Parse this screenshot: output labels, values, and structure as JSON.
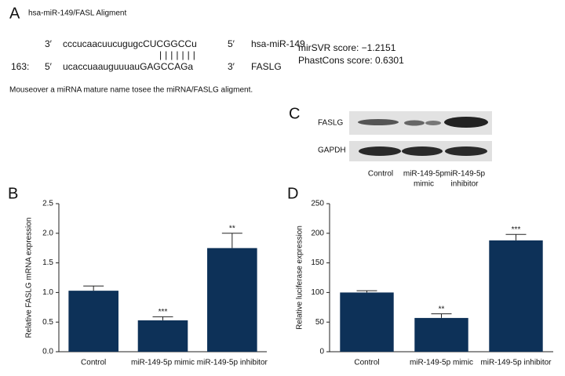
{
  "panel_a": {
    "label": "A",
    "title": "hsa-miR-149/FASL Aligment",
    "mirna_row": [
      "3′",
      "cccucaacuucugugcCUCGGCCu",
      "5′",
      "hsa-miR-149"
    ],
    "pairing": "|||||||",
    "target_row": [
      "163:",
      "5′",
      "ucaccuaauguuuauGAGCCAGa",
      "3′",
      "FASLG"
    ],
    "scores": [
      "mirSVR score: −1.2151",
      "PhastCons score: 0.6301"
    ],
    "note": "Mouseover a miRNA mature name tosee the miRNA/FASLG aligment."
  },
  "panel_c": {
    "label": "C",
    "rows": [
      "FASLG",
      "GAPDH"
    ],
    "lanes": [
      [
        "Control"
      ],
      [
        "miR-149-5p",
        "mimic"
      ],
      [
        "miR-149-5p",
        "inhibitor"
      ]
    ]
  },
  "chart_data": [
    {
      "type": "bar",
      "label": "B",
      "ylabel": "Relative FASLG mRNA expression",
      "categories": [
        "Control",
        "miR-149-5p mimic",
        "miR-149-5p inhibitor"
      ],
      "values": [
        1.03,
        0.53,
        1.75
      ],
      "errors": [
        0.08,
        0.06,
        0.25
      ],
      "annotations": [
        null,
        "***",
        "**"
      ],
      "color": "#0d3158",
      "ylim": [
        0,
        2.5
      ],
      "yticks": [
        {
          "value": 0,
          "label": "0.0"
        },
        0.5,
        {
          "value": 1,
          "label": "1.0"
        },
        1.5,
        {
          "value": 2,
          "label": "2.0"
        },
        2.5
      ]
    },
    {
      "type": "bar",
      "label": "D",
      "ylabel": "Relative luciferase expression",
      "categories": [
        "Control",
        "miR-149-5p mimic",
        "miR-149-5p inhibitor"
      ],
      "values": [
        100,
        57,
        188
      ],
      "errors": [
        3,
        7,
        10
      ],
      "annotations": [
        null,
        "**",
        "***"
      ],
      "color": "#0d3158",
      "ylim": [
        0,
        250
      ],
      "yticks": [
        0,
        50,
        100,
        150,
        200,
        250
      ]
    }
  ]
}
